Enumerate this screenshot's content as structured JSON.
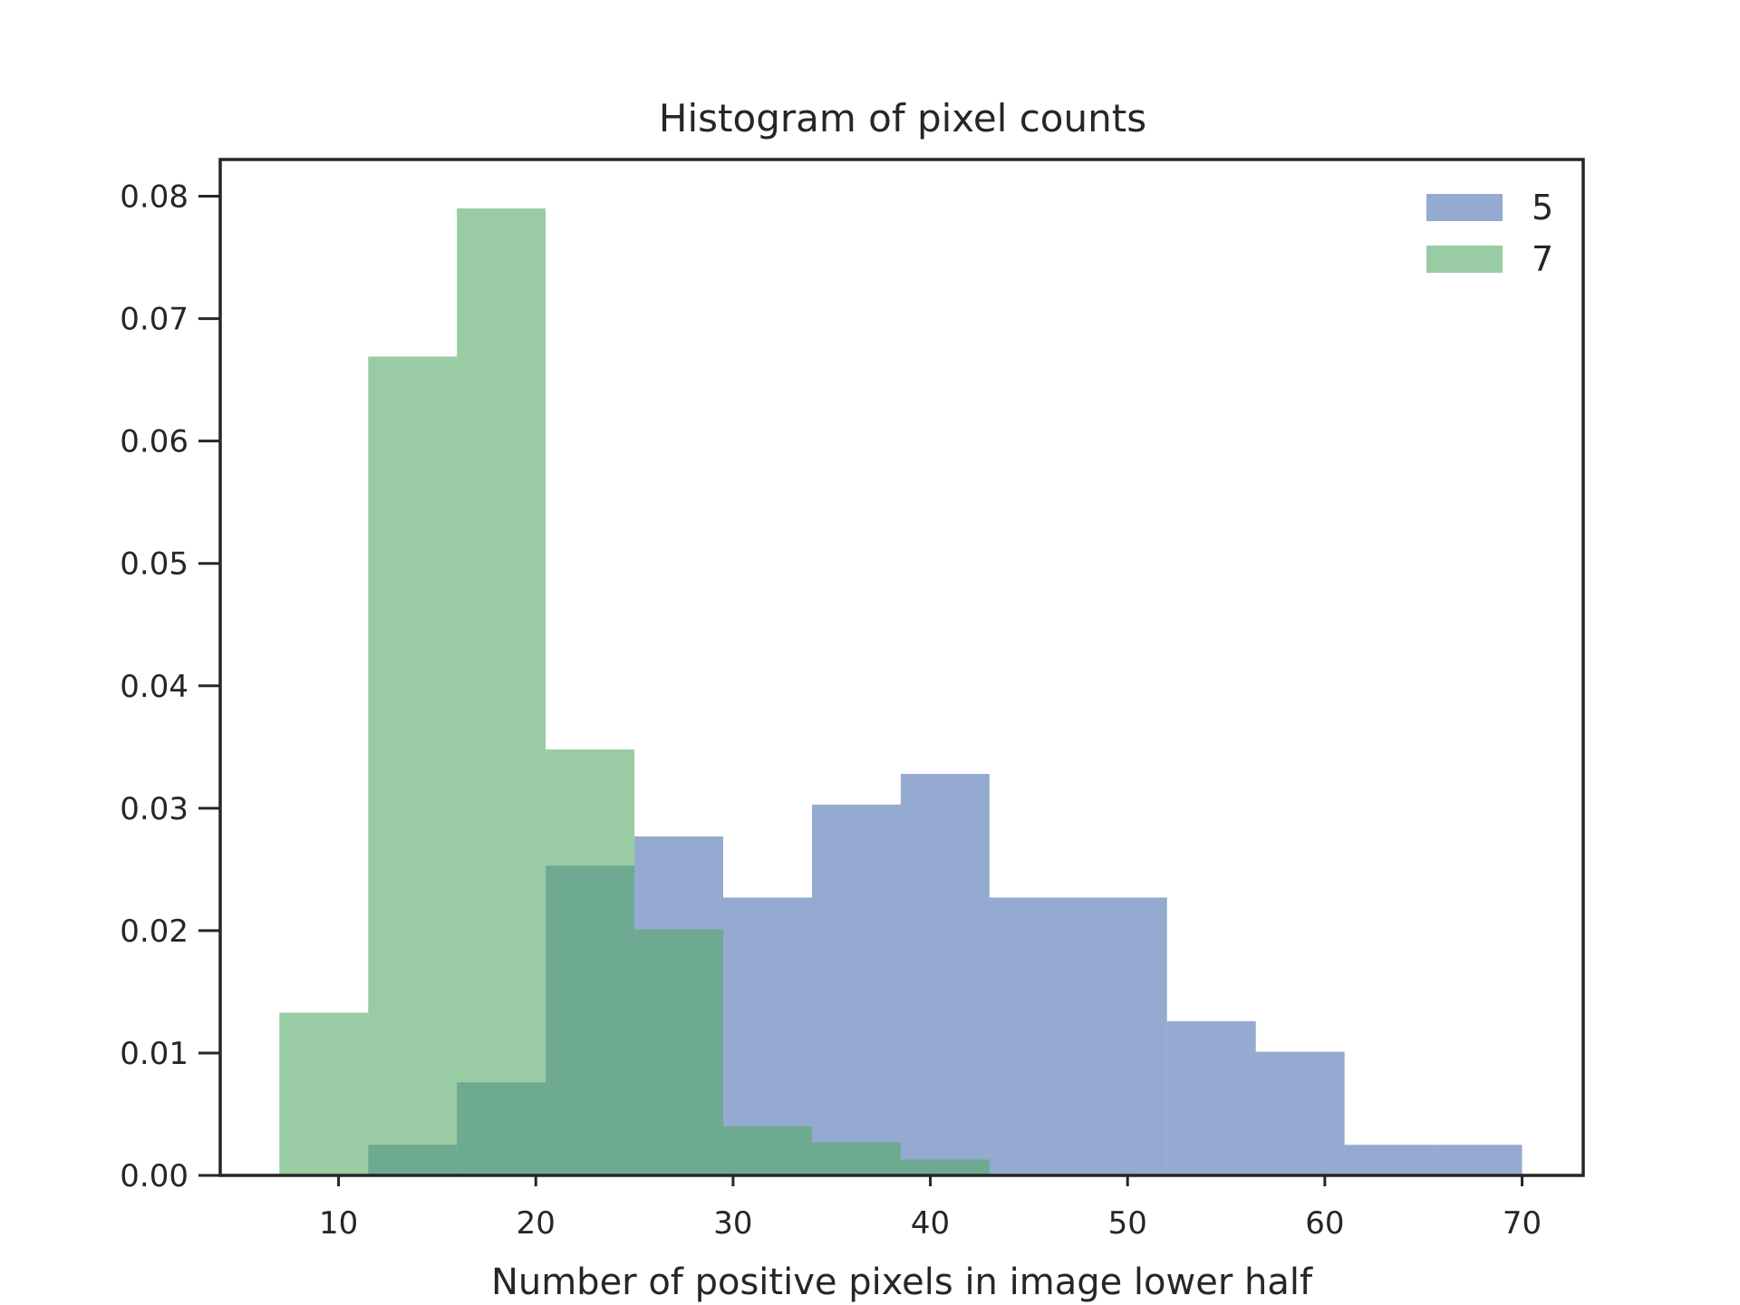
{
  "chart_data": {
    "type": "bar",
    "title": "Histogram of pixel counts",
    "xlabel": "Number of positive pixels in image lower half",
    "ylabel": "",
    "xlim": [
      4,
      73.1
    ],
    "ylim": [
      0,
      0.083
    ],
    "xticks": [
      "10",
      "20",
      "30",
      "40",
      "50",
      "60",
      "70"
    ],
    "yticks": [
      "0.00",
      "0.01",
      "0.02",
      "0.03",
      "0.04",
      "0.05",
      "0.06",
      "0.07",
      "0.08"
    ],
    "grid": false,
    "legend_position": "top-right",
    "series": [
      {
        "name": "5",
        "color": "#4c72b0",
        "opacity": 0.6,
        "bin_edges": [
          11.5,
          16.0,
          20.5,
          25.0,
          29.5,
          34.0,
          38.5,
          43.0,
          47.5,
          52.0,
          56.5,
          61.0,
          65.5,
          70.0
        ],
        "values": [
          0.0025,
          0.0076,
          0.0253,
          0.0277,
          0.0227,
          0.0303,
          0.0328,
          0.0227,
          0.0227,
          0.0126,
          0.0101,
          0.0025,
          0.0025
        ]
      },
      {
        "name": "7",
        "color": "#55a868",
        "opacity": 0.6,
        "bin_edges": [
          7.0,
          11.5,
          16.0,
          20.5,
          25.0,
          29.5,
          34.0,
          38.5,
          43.0
        ],
        "values": [
          0.0133,
          0.0669,
          0.079,
          0.0348,
          0.0201,
          0.004,
          0.0027,
          0.0013
        ]
      }
    ]
  }
}
